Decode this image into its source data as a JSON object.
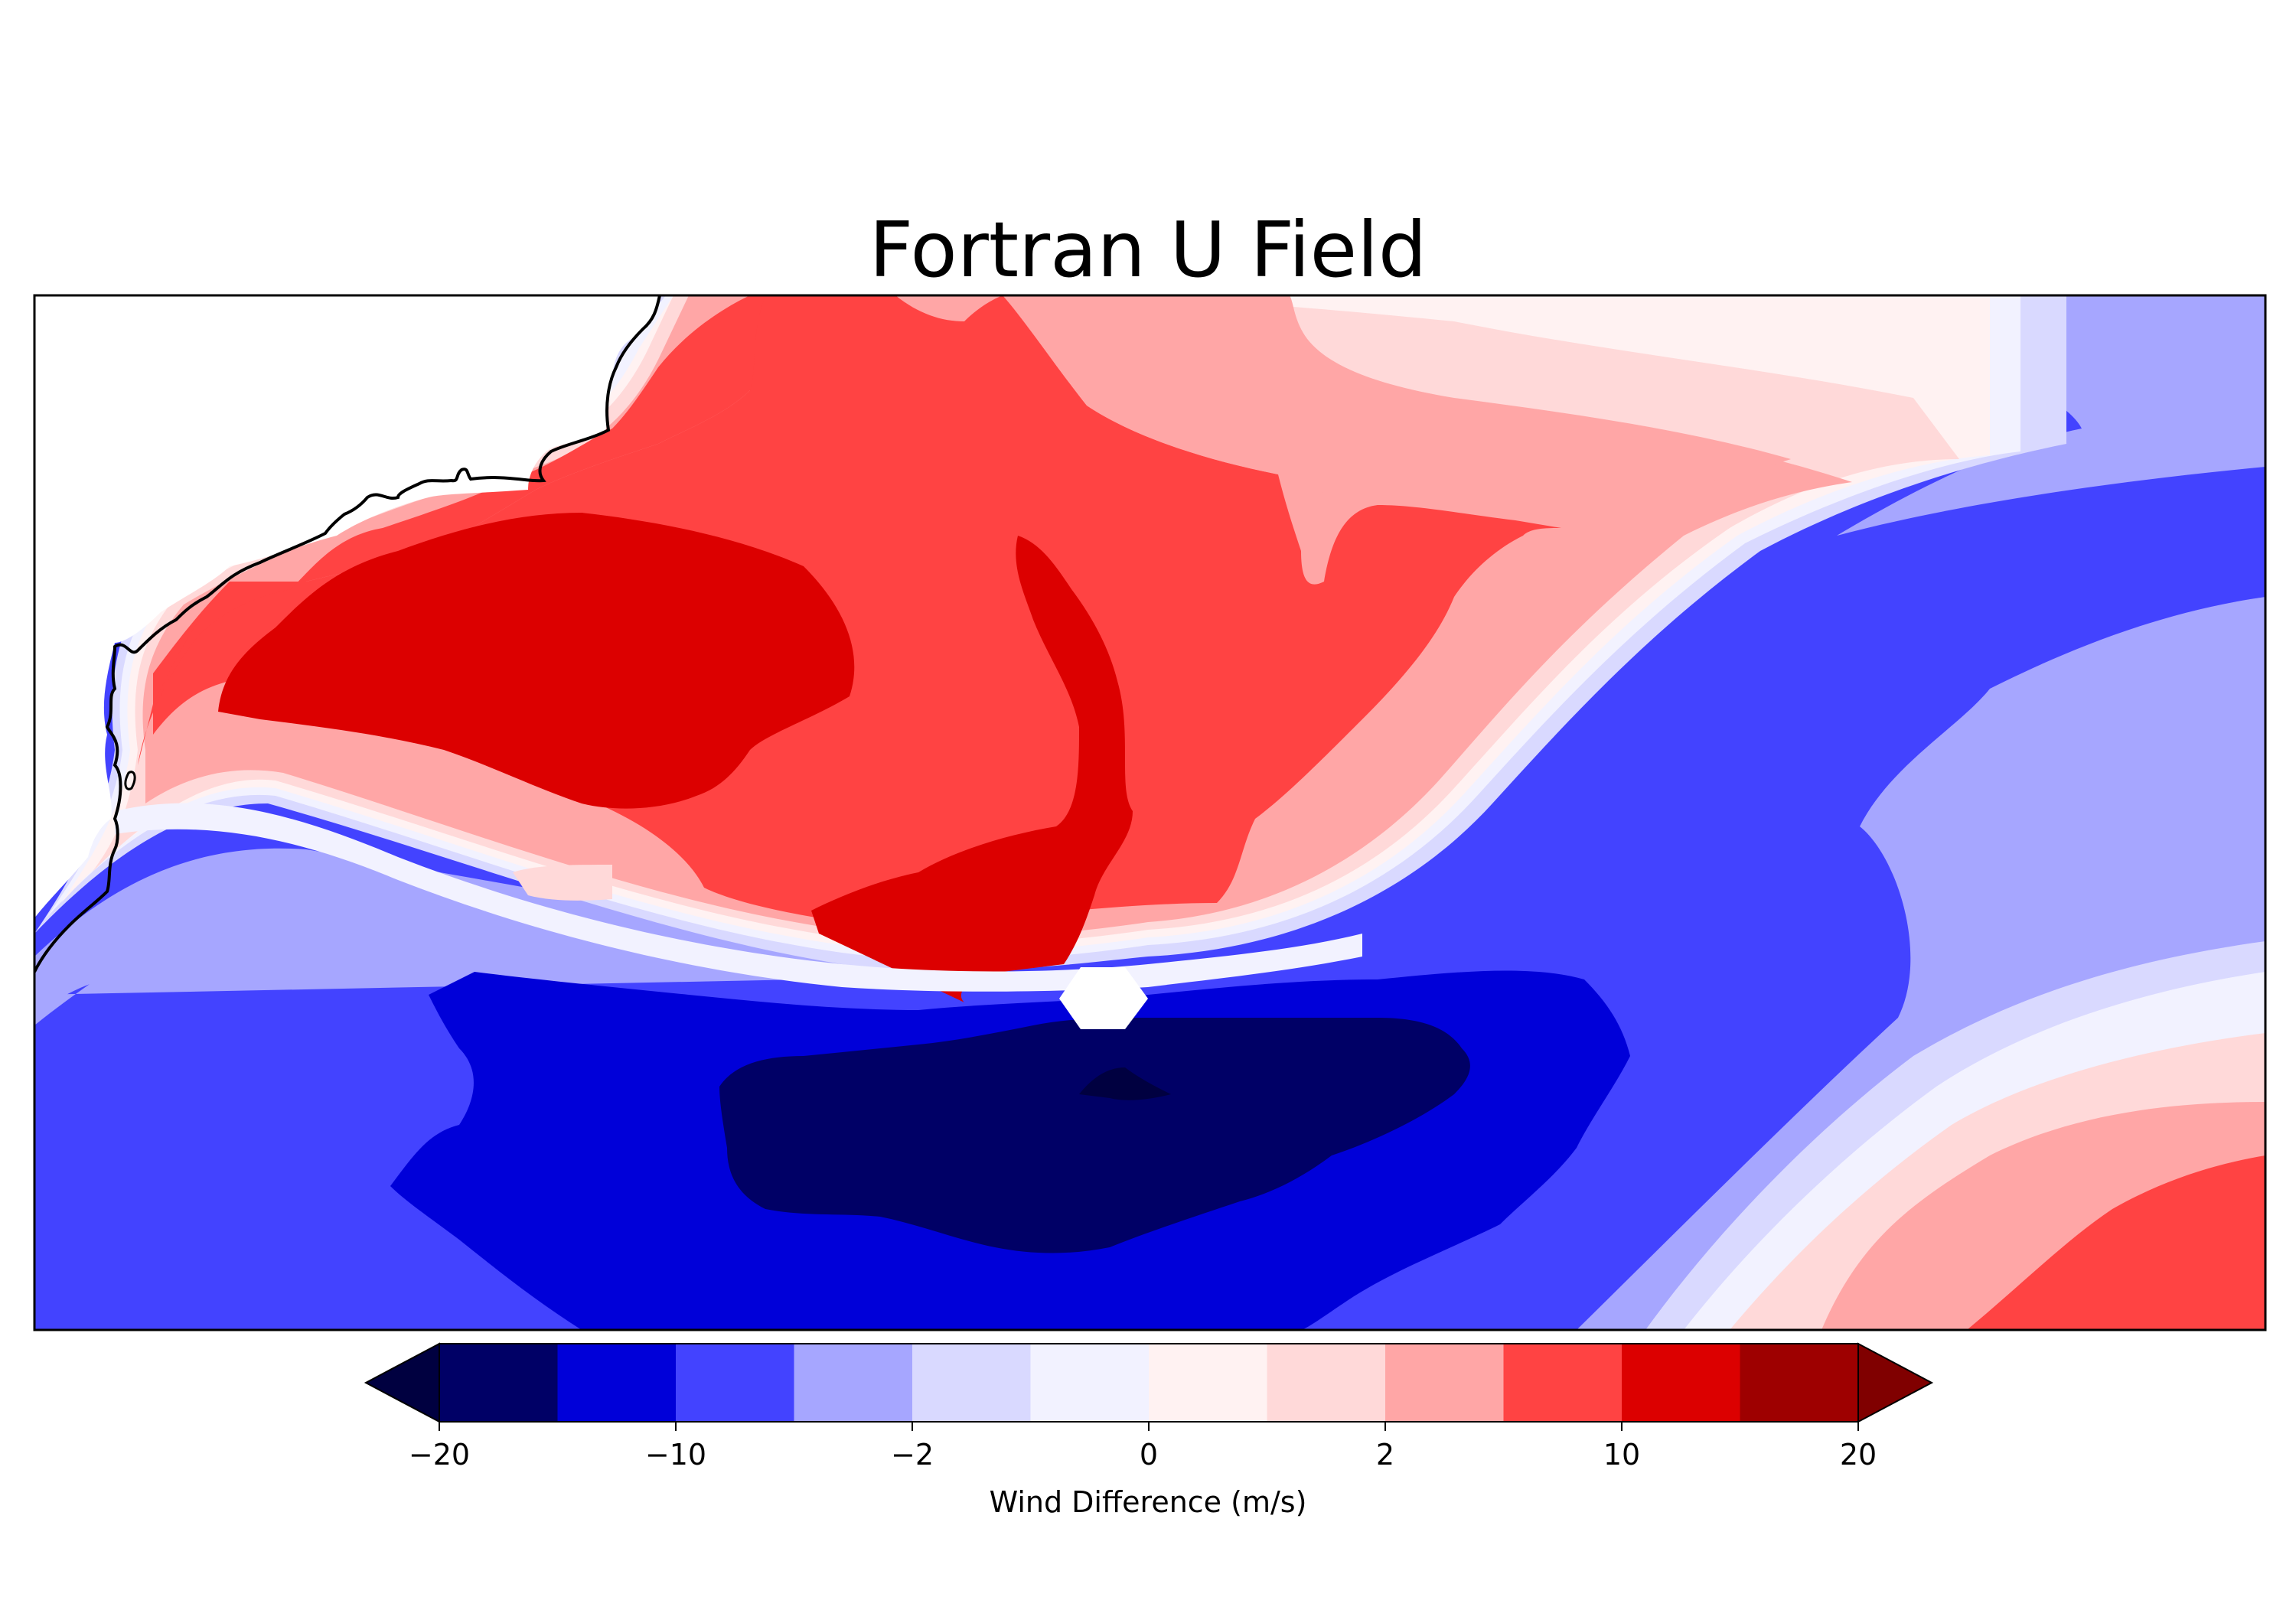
{
  "figure": {
    "title": "Fortran U Field"
  },
  "colorbar": {
    "label": "Wind Difference (m/s)",
    "extend": "both",
    "tick_labels": [
      "−20",
      "−10",
      "−2",
      "0",
      "2",
      "10",
      "20"
    ],
    "bins": [
      {
        "range": "-20 to -15",
        "color": "#000066"
      },
      {
        "range": "-15 to -10",
        "color": "#0000d9"
      },
      {
        "range": "-10 to -5",
        "color": "#4343ff"
      },
      {
        "range": "-5 to -2",
        "color": "#a6a6ff"
      },
      {
        "range": "-2 to -1",
        "color": "#d9d9ff"
      },
      {
        "range": "-1 to 0",
        "color": "#f2f2ff"
      },
      {
        "range": "0 to 1",
        "color": "#fff2f2"
      },
      {
        "range": "1 to 2",
        "color": "#ffd9d9"
      },
      {
        "range": "2 to 5",
        "color": "#ffa6a6"
      },
      {
        "range": "5 to 10",
        "color": "#ff4343"
      },
      {
        "range": "10 to 15",
        "color": "#dc0000"
      },
      {
        "range": "15 to 20",
        "color": "#9e0000"
      }
    ],
    "under_color": "#000040",
    "over_color": "#800000"
  },
  "map": {
    "variable": "U wind difference",
    "features": [
      "coastline"
    ],
    "regions": [
      {
        "area": "north-center and northwest",
        "value_range": "5 to 15",
        "color": "#ff4343"
      },
      {
        "area": "west-center core",
        "value_range": "10 to 15",
        "color": "#dc0000"
      },
      {
        "area": "south-center core",
        "value_range": "-20 to -15",
        "color": "#000066"
      },
      {
        "area": "southwest and east",
        "value_range": "-10 to -5",
        "color": "#4343ff"
      },
      {
        "area": "southeast corner",
        "value_range": "5 to 10",
        "color": "#ff4343"
      }
    ]
  }
}
